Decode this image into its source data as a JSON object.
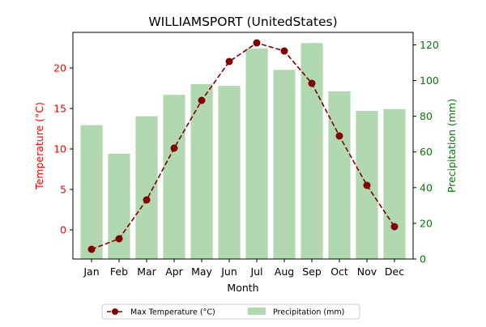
{
  "chart_data": {
    "type": "bar+line",
    "title": "WILLIAMSPORT (UnitedStates)",
    "xlabel": "Month",
    "categories": [
      "Jan",
      "Feb",
      "Mar",
      "Apr",
      "May",
      "Jun",
      "Jul",
      "Aug",
      "Sep",
      "Oct",
      "Nov",
      "Dec"
    ],
    "temperature": {
      "name": "Max Temperature (°C)",
      "axis_label": "Temperature (°C)",
      "color": "#800000",
      "axis_color": "#ff0000",
      "ylim": [
        -3.6,
        24.4
      ],
      "ticks": [
        0,
        5,
        10,
        15,
        20
      ],
      "values": [
        -2.4,
        -1.1,
        3.7,
        10.1,
        16.0,
        20.8,
        23.1,
        22.1,
        18.1,
        11.6,
        5.5,
        0.4
      ]
    },
    "precipitation": {
      "name": "Precipitation (mm)",
      "axis_label": "Precipitation (mm)",
      "color": "#b2d8b2",
      "axis_color": "#008000",
      "ylim": [
        0,
        127
      ],
      "ticks": [
        0,
        20,
        40,
        60,
        80,
        100,
        120
      ],
      "values": [
        75,
        59,
        80,
        92,
        98,
        97,
        118,
        106,
        121,
        94,
        83,
        84
      ]
    },
    "legend_position": "bottom-center",
    "grid": false
  }
}
